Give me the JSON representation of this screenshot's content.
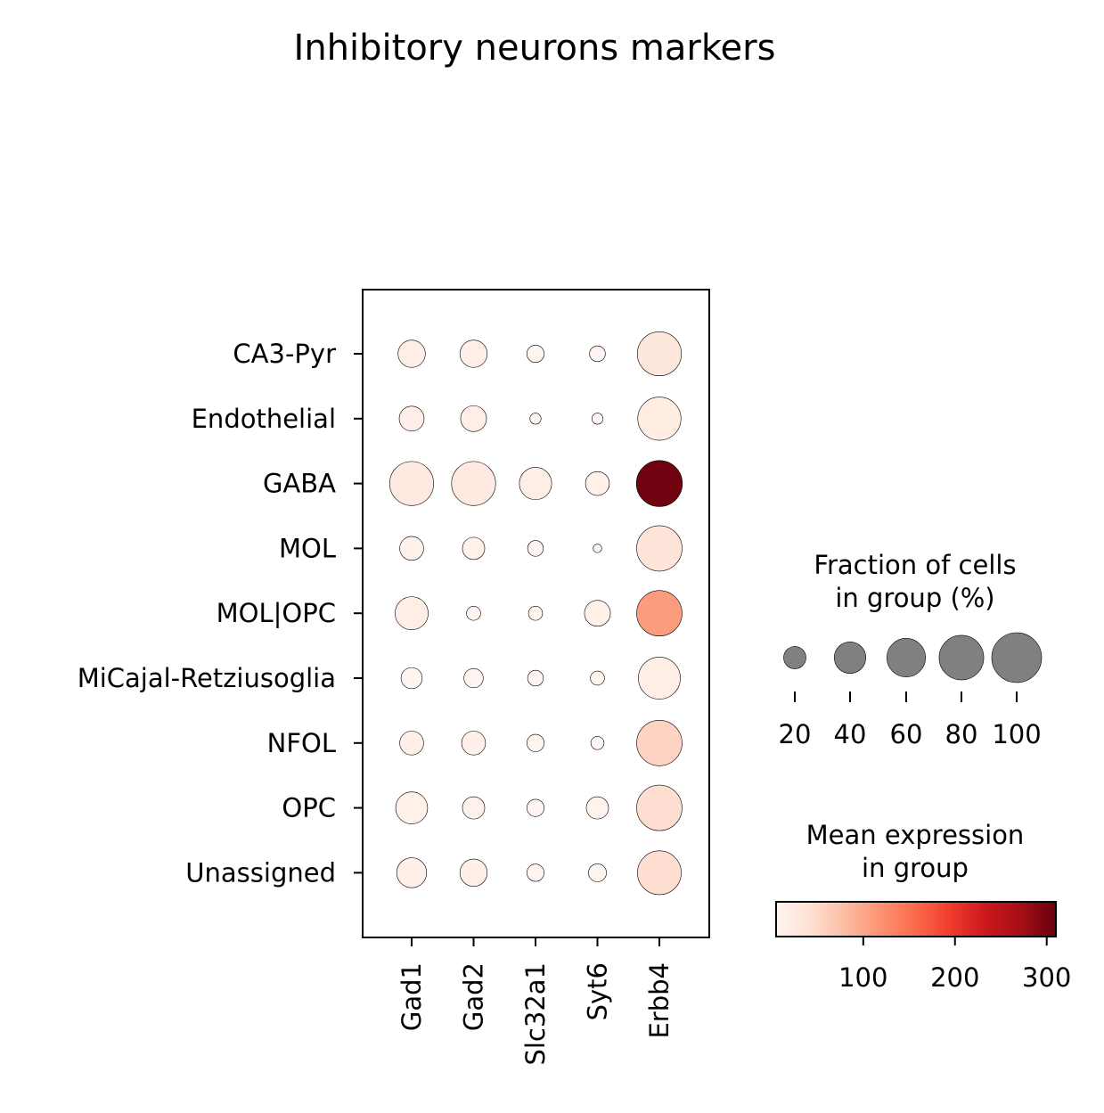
{
  "chart_data": {
    "type": "dotplot",
    "title": "Inhibitory neurons markers",
    "genes": [
      "Gad1",
      "Gad2",
      "Slc32a1",
      "Syt6",
      "Erbb4"
    ],
    "groups": [
      "CA3-Pyr",
      "Endothelial",
      "GABA",
      "MOL",
      "MOL|OPC",
      "MiCajal-Retziusoglia",
      "NFOL",
      "OPC",
      "Unassigned"
    ],
    "fraction_pct": [
      [
        30,
        30,
        12,
        10,
        78
      ],
      [
        25,
        27,
        5,
        5,
        75
      ],
      [
        78,
        78,
        42,
        23,
        85
      ],
      [
        23,
        20,
        10,
        3,
        83
      ],
      [
        44,
        8,
        8,
        27,
        83
      ],
      [
        18,
        15,
        10,
        8,
        71
      ],
      [
        23,
        23,
        12,
        7,
        83
      ],
      [
        41,
        20,
        12,
        20,
        83
      ],
      [
        36,
        30,
        12,
        13,
        77
      ]
    ],
    "mean_expression": [
      [
        18,
        15,
        5,
        4,
        30
      ],
      [
        15,
        18,
        3,
        3,
        20
      ],
      [
        25,
        25,
        18,
        12,
        305
      ],
      [
        12,
        12,
        3,
        3,
        35
      ],
      [
        18,
        5,
        5,
        12,
        110
      ],
      [
        5,
        5,
        3,
        3,
        18
      ],
      [
        15,
        15,
        5,
        3,
        55
      ],
      [
        12,
        12,
        5,
        8,
        45
      ],
      [
        15,
        15,
        5,
        5,
        45
      ]
    ],
    "size_legend": {
      "title": "Fraction of cells\nin group (%)",
      "values": [
        20,
        40,
        60,
        80,
        100
      ],
      "tick_labels": [
        "20",
        "40",
        "60",
        "80",
        "100"
      ]
    },
    "color_legend": {
      "title": "Mean expression\nin group",
      "colormap": "Reds",
      "vmin": 5,
      "vmax": 310,
      "ticks": [
        100,
        200,
        300
      ],
      "tick_labels": [
        "100",
        "200",
        "300"
      ]
    }
  }
}
